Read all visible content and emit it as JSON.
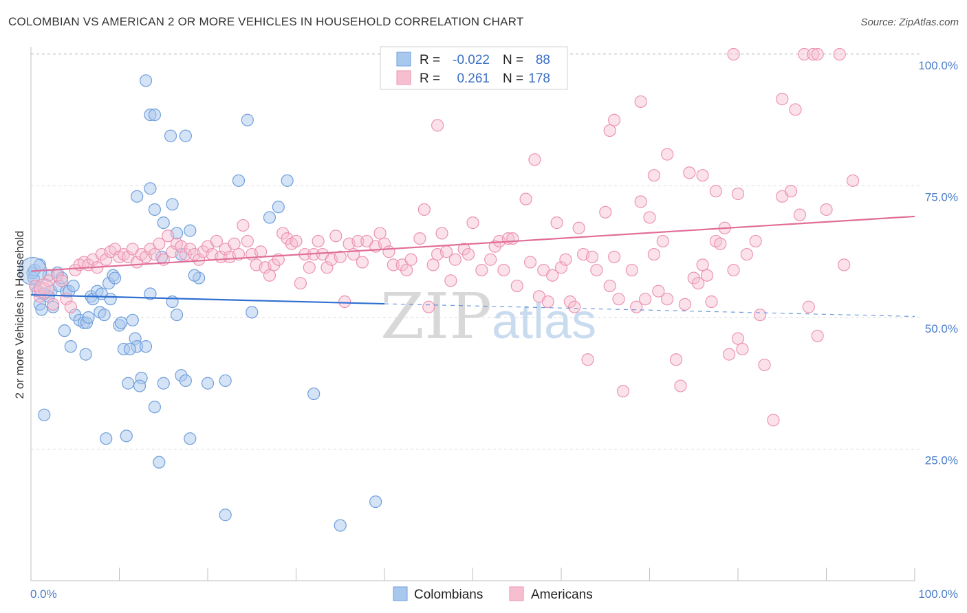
{
  "title": "COLOMBIAN VS AMERICAN 2 OR MORE VEHICLES IN HOUSEHOLD CORRELATION CHART",
  "source": "Source: ZipAtlas.com",
  "watermark": {
    "zip": "ZIP",
    "atlas": "atlas"
  },
  "colors": {
    "blue_fill": "#a9c8ee",
    "blue_stroke": "#6f9fdc",
    "blue_line": "#2f6fd0",
    "pink_fill": "#f6bfd0",
    "pink_stroke": "#ec93b1",
    "pink_line": "#e06d98",
    "grid": "#d9d9d9",
    "tick_text": "#4a7cc9"
  },
  "legend": {
    "rows": [
      {
        "r_label": "R =",
        "r_value": "-0.022",
        "n_label": "N =",
        "n_value": "88"
      },
      {
        "r_label": "R =",
        "r_value": "0.261",
        "n_label": "N =",
        "n_value": "178"
      }
    ]
  },
  "bottom_legend": [
    "Colombians",
    "Americans"
  ],
  "chart_data": {
    "type": "scatter",
    "title": "COLOMBIAN VS AMERICAN 2 OR MORE VEHICLES IN HOUSEHOLD CORRELATION CHART",
    "xlabel": "",
    "ylabel": "2 or more Vehicles in Household",
    "xlim": [
      0,
      100
    ],
    "ylim": [
      0,
      103
    ],
    "x_ticks": [
      "0.0%",
      "100.0%"
    ],
    "y_ticks": [
      {
        "value": 100,
        "label": "100.0%"
      },
      {
        "value": 75,
        "label": "75.0%"
      },
      {
        "value": 50,
        "label": "50.0%"
      },
      {
        "value": 25,
        "label": "25.0%"
      }
    ],
    "grid": true,
    "legend_position": "top-center",
    "series": [
      {
        "name": "Colombians",
        "r": -0.022,
        "n": 88,
        "trend": {
          "x": [
            0,
            40
          ],
          "y": [
            54.3,
            52.6
          ],
          "dashed_to": [
            100,
            50.2
          ]
        },
        "points": [
          [
            0.3,
            57.5
          ],
          [
            0.5,
            56
          ],
          [
            0.8,
            55
          ],
          [
            1,
            52.5
          ],
          [
            1.2,
            51.5
          ],
          [
            1.5,
            54.5
          ],
          [
            2,
            58
          ],
          [
            2.3,
            55
          ],
          [
            2.5,
            52
          ],
          [
            3,
            58.5
          ],
          [
            3.2,
            56
          ],
          [
            3.5,
            57.5
          ],
          [
            4,
            55
          ],
          [
            4.3,
            55
          ],
          [
            4.8,
            56
          ],
          [
            5,
            50.5
          ],
          [
            5.5,
            49.5
          ],
          [
            6,
            49
          ],
          [
            6.3,
            49
          ],
          [
            6.5,
            50
          ],
          [
            6.8,
            54
          ],
          [
            7,
            53.5
          ],
          [
            7.5,
            55
          ],
          [
            7.8,
            51
          ],
          [
            8,
            54.5
          ],
          [
            8.3,
            50.5
          ],
          [
            8.8,
            56.5
          ],
          [
            9,
            53.5
          ],
          [
            9.3,
            58
          ],
          [
            9.5,
            57.5
          ],
          [
            10,
            48.5
          ],
          [
            10.5,
            44
          ],
          [
            11,
            37.5
          ],
          [
            11.5,
            49.5
          ],
          [
            11.8,
            46
          ],
          [
            12,
            44.5
          ],
          [
            12.5,
            38.5
          ],
          [
            12.3,
            37
          ],
          [
            13,
            44.5
          ],
          [
            14,
            33
          ],
          [
            14.5,
            22.5
          ],
          [
            15,
            37.5
          ],
          [
            16,
            53
          ],
          [
            16.5,
            50.5
          ],
          [
            17,
            39
          ],
          [
            17.5,
            38
          ],
          [
            18,
            27
          ],
          [
            19,
            57.5
          ],
          [
            20,
            37.5
          ],
          [
            22,
            12.5
          ],
          [
            1.5,
            31.5
          ],
          [
            3.8,
            47.5
          ],
          [
            4.5,
            44.5
          ],
          [
            6.2,
            43
          ],
          [
            8.5,
            27
          ],
          [
            10.2,
            49
          ],
          [
            10.8,
            27.5
          ],
          [
            11.2,
            44
          ],
          [
            13.5,
            54.5
          ],
          [
            14.8,
            61.5
          ],
          [
            16.5,
            66
          ],
          [
            17,
            62
          ],
          [
            18.5,
            58
          ],
          [
            22,
            38
          ],
          [
            23.5,
            76
          ],
          [
            24.5,
            87.5
          ],
          [
            25,
            51
          ],
          [
            27,
            69
          ],
          [
            28,
            71
          ],
          [
            29,
            76
          ],
          [
            32,
            35.5
          ],
          [
            35,
            10.5
          ],
          [
            39,
            15
          ],
          [
            13,
            95
          ],
          [
            13.5,
            88.5
          ],
          [
            14,
            88.5
          ],
          [
            15.8,
            84.5
          ],
          [
            17.5,
            84.5
          ],
          [
            12,
            73
          ],
          [
            13.5,
            74.5
          ],
          [
            14,
            70.5
          ],
          [
            15,
            68
          ],
          [
            16,
            71.5
          ],
          [
            18,
            66.5
          ],
          [
            0.2,
            58.5
          ],
          [
            0.4,
            59
          ],
          [
            1,
            60
          ],
          [
            2,
            54
          ]
        ]
      },
      {
        "name": "Americans",
        "r": 0.261,
        "n": 178,
        "trend": {
          "x": [
            0,
            100
          ],
          "y": [
            58.8,
            69.2
          ]
        },
        "points": [
          [
            0.5,
            56
          ],
          [
            1,
            54
          ],
          [
            1.5,
            55.5
          ],
          [
            2,
            57
          ],
          [
            2.5,
            52.5
          ],
          [
            3,
            58
          ],
          [
            3.5,
            57
          ],
          [
            4,
            53.5
          ],
          [
            4.5,
            52
          ],
          [
            5,
            59
          ],
          [
            5.5,
            60
          ],
          [
            6,
            60.5
          ],
          [
            6.5,
            60
          ],
          [
            7,
            61
          ],
          [
            7.5,
            59.5
          ],
          [
            8,
            62
          ],
          [
            8.5,
            61
          ],
          [
            9,
            62.5
          ],
          [
            9.5,
            63
          ],
          [
            10,
            61.5
          ],
          [
            10.5,
            62
          ],
          [
            11,
            61.5
          ],
          [
            11.5,
            63
          ],
          [
            12,
            60.5
          ],
          [
            12.5,
            62
          ],
          [
            13,
            61.5
          ],
          [
            13.5,
            63
          ],
          [
            14,
            62
          ],
          [
            14.5,
            64
          ],
          [
            15,
            61
          ],
          [
            15.5,
            65.5
          ],
          [
            16,
            62.5
          ],
          [
            16.5,
            64
          ],
          [
            17,
            63.5
          ],
          [
            17.5,
            62
          ],
          [
            18,
            63
          ],
          [
            18.5,
            62
          ],
          [
            19,
            61
          ],
          [
            19.5,
            62.5
          ],
          [
            20,
            63.5
          ],
          [
            20.5,
            62
          ],
          [
            21,
            64.5
          ],
          [
            21.5,
            61.5
          ],
          [
            22,
            63
          ],
          [
            22.5,
            61.5
          ],
          [
            23,
            64
          ],
          [
            23.5,
            62
          ],
          [
            24,
            67.5
          ],
          [
            24.5,
            64.5
          ],
          [
            25,
            62
          ],
          [
            25.5,
            60
          ],
          [
            26,
            62.5
          ],
          [
            26.5,
            59.5
          ],
          [
            27,
            58
          ],
          [
            27.5,
            60
          ],
          [
            28,
            61
          ],
          [
            28.5,
            66
          ],
          [
            29,
            65
          ],
          [
            29.5,
            64
          ],
          [
            30,
            64.5
          ],
          [
            30.5,
            56.5
          ],
          [
            31,
            62
          ],
          [
            31.5,
            59.5
          ],
          [
            32,
            62
          ],
          [
            32.5,
            64.5
          ],
          [
            33,
            62
          ],
          [
            33.5,
            59.5
          ],
          [
            34,
            61
          ],
          [
            34.5,
            65.5
          ],
          [
            35,
            61.5
          ],
          [
            35.5,
            53
          ],
          [
            36,
            64
          ],
          [
            36.5,
            62
          ],
          [
            37,
            64.5
          ],
          [
            37.5,
            60.5
          ],
          [
            38,
            64.5
          ],
          [
            39,
            63.5
          ],
          [
            39.5,
            66
          ],
          [
            40,
            64
          ],
          [
            40.5,
            62.5
          ],
          [
            41,
            60
          ],
          [
            42,
            60
          ],
          [
            42.5,
            59
          ],
          [
            43,
            61
          ],
          [
            44,
            65
          ],
          [
            44.5,
            70.5
          ],
          [
            45,
            52
          ],
          [
            45.5,
            60
          ],
          [
            46,
            62
          ],
          [
            46.5,
            66
          ],
          [
            47,
            62.5
          ],
          [
            47.5,
            57
          ],
          [
            48,
            61
          ],
          [
            49,
            63
          ],
          [
            49.5,
            62
          ],
          [
            50,
            68
          ],
          [
            51,
            59
          ],
          [
            52,
            61
          ],
          [
            52.5,
            63.5
          ],
          [
            53,
            64.5
          ],
          [
            53.5,
            59
          ],
          [
            54,
            65
          ],
          [
            54.5,
            65
          ],
          [
            55,
            56
          ],
          [
            56,
            72.5
          ],
          [
            56.5,
            60.5
          ],
          [
            57,
            80
          ],
          [
            57.5,
            54
          ],
          [
            58,
            59
          ],
          [
            58.5,
            53
          ],
          [
            59,
            58
          ],
          [
            59.5,
            68
          ],
          [
            60,
            59.5
          ],
          [
            60.5,
            61
          ],
          [
            61,
            53
          ],
          [
            61.5,
            52
          ],
          [
            62,
            67
          ],
          [
            62.5,
            62
          ],
          [
            63,
            42
          ],
          [
            63.5,
            61.5
          ],
          [
            64,
            59
          ],
          [
            65,
            70
          ],
          [
            65.5,
            56
          ],
          [
            66,
            61.5
          ],
          [
            66.5,
            53.5
          ],
          [
            67,
            36
          ],
          [
            68,
            59
          ],
          [
            68.5,
            52
          ],
          [
            69,
            72
          ],
          [
            69.5,
            53.5
          ],
          [
            70,
            69
          ],
          [
            70.5,
            62
          ],
          [
            71,
            55
          ],
          [
            71.5,
            64.5
          ],
          [
            72,
            53.5
          ],
          [
            73,
            42
          ],
          [
            73.5,
            37
          ],
          [
            74,
            52.5
          ],
          [
            75,
            57.5
          ],
          [
            75.5,
            56.5
          ],
          [
            76,
            60
          ],
          [
            76.5,
            58
          ],
          [
            77,
            53
          ],
          [
            77.5,
            64.5
          ],
          [
            78,
            64
          ],
          [
            78.5,
            67
          ],
          [
            79,
            43
          ],
          [
            79.5,
            59
          ],
          [
            80,
            46
          ],
          [
            80.5,
            44
          ],
          [
            81,
            62
          ],
          [
            82,
            64.5
          ],
          [
            82.5,
            50.5
          ],
          [
            83,
            41
          ],
          [
            84,
            30.5
          ],
          [
            85,
            73
          ],
          [
            86,
            74
          ],
          [
            87,
            69.5
          ],
          [
            88,
            52
          ],
          [
            89,
            46.5
          ],
          [
            90,
            70.5
          ],
          [
            92,
            60
          ],
          [
            93,
            76
          ],
          [
            46,
            86.5
          ],
          [
            66,
            87.5
          ],
          [
            69,
            91
          ],
          [
            72,
            81
          ],
          [
            74.5,
            77.5
          ],
          [
            65.5,
            85.5
          ],
          [
            79.5,
            100
          ],
          [
            87.5,
            100
          ],
          [
            88.5,
            100
          ],
          [
            89,
            100
          ],
          [
            91.5,
            100
          ],
          [
            85,
            91.5
          ],
          [
            86.5,
            89.5
          ],
          [
            70.5,
            77
          ],
          [
            76,
            77
          ],
          [
            77.5,
            74
          ],
          [
            80,
            73.5
          ]
        ]
      }
    ]
  }
}
